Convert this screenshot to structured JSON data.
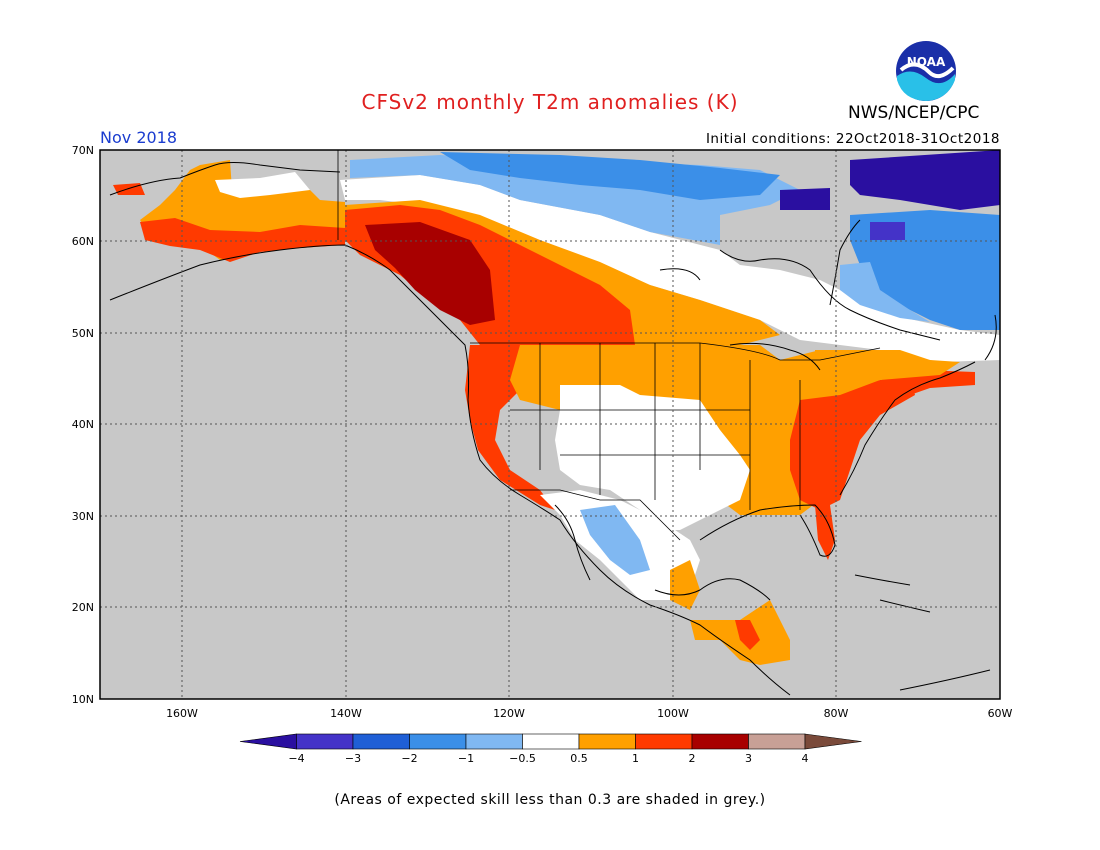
{
  "header": {
    "title": "CFSv2 monthly T2m anomalies (K)",
    "period": "Nov 2018",
    "initial_conditions": "Initial conditions: 22Oct2018-31Oct2018",
    "agency": "NWS/NCEP/CPC",
    "logo_text": "NOAA"
  },
  "map": {
    "region": "North America",
    "lat_labels": [
      "70N",
      "60N",
      "50N",
      "40N",
      "30N",
      "20N",
      "10N"
    ],
    "lon_labels": [
      "160W",
      "140W",
      "120W",
      "100W",
      "80W",
      "60W"
    ],
    "lat_range": [
      10,
      70
    ],
    "lon_range": [
      -170,
      -60
    ],
    "no_skill_color": "#c8c8c8"
  },
  "colorbar": {
    "ticks": [
      "−4",
      "−3",
      "−2",
      "−1",
      "−0.5",
      "0.5",
      "1",
      "2",
      "3",
      "4"
    ],
    "colors": [
      "#2a0fa0",
      "#4433c8",
      "#1f5fd6",
      "#3b8fe8",
      "#80b8f2",
      "#ffffff",
      "#ffa000",
      "#ff3a00",
      "#a80000",
      "#c8a096",
      "#7a4a3a"
    ]
  },
  "footnote": "(Areas of expected skill less than 0.3 are shaded in grey.)"
}
